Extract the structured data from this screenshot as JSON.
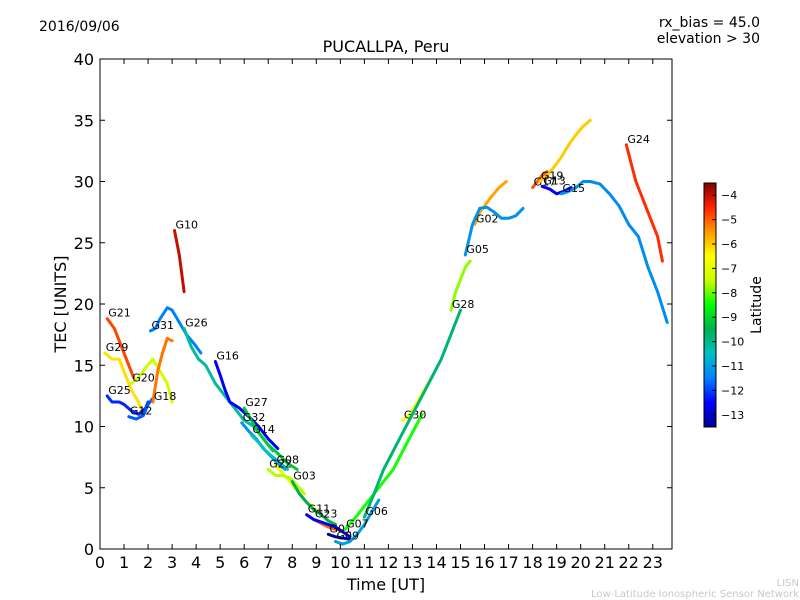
{
  "header": {
    "date": "2016/09/06",
    "params": [
      "rx_bias = 45.0",
      "elevation > 30"
    ]
  },
  "footer": {
    "acronym": "LISN",
    "network": "Low-Latitude Ionospheric Sensor Network"
  },
  "chart_data": {
    "type": "line",
    "title": "PUCALLPA, Peru",
    "xlabel": "Time [UT]",
    "ylabel": "TEC [UNITS]",
    "xlim": [
      0,
      23.8
    ],
    "ylim": [
      0,
      40
    ],
    "xticks": [
      0,
      1,
      2,
      3,
      4,
      5,
      6,
      7,
      8,
      9,
      10,
      11,
      12,
      13,
      14,
      15,
      16,
      17,
      18,
      19,
      20,
      21,
      22,
      23
    ],
    "yticks": [
      0,
      5,
      10,
      15,
      20,
      25,
      30,
      35,
      40
    ],
    "grid": false,
    "colorbar": {
      "label": "Latitude",
      "range": [
        -13.5,
        -3.5
      ],
      "ticks": [
        -4,
        -5,
        -6,
        -7,
        -8,
        -9,
        -10,
        -11,
        -12,
        -13
      ],
      "colormap": [
        "#00008f",
        "#0000ff",
        "#0080ff",
        "#00c0c0",
        "#00b050",
        "#00ff00",
        "#c8ff00",
        "#ffff00",
        "#ff9900",
        "#ff2200",
        "#800000"
      ]
    },
    "series": [
      {
        "name": "G21",
        "lat": -4.8,
        "x": [
          0.3,
          0.6,
          0.9,
          1.2,
          1.4
        ],
        "y": [
          18.8,
          18.0,
          16.5,
          15.0,
          14.0
        ]
      },
      {
        "name": "G29",
        "lat": -6.2,
        "x": [
          0.2,
          0.5,
          0.8,
          1.0,
          1.3,
          1.6,
          1.8
        ],
        "y": [
          16.0,
          15.5,
          15.5,
          14.5,
          13.0,
          12.0,
          11.0
        ]
      },
      {
        "name": "G25",
        "lat": -12.2,
        "x": [
          0.3,
          0.5,
          0.8,
          1.0,
          1.3,
          1.6,
          1.9,
          2.0
        ],
        "y": [
          12.5,
          12.0,
          12.0,
          11.8,
          11.3,
          11.0,
          11.5,
          12.0
        ]
      },
      {
        "name": "G12",
        "lat": -11.8,
        "x": [
          1.2,
          1.5,
          1.8,
          2.0,
          2.2
        ],
        "y": [
          10.8,
          10.6,
          10.9,
          11.8,
          12.3
        ]
      },
      {
        "name": "G20",
        "lat": -7.4,
        "x": [
          1.3,
          1.6,
          1.9,
          2.2,
          2.5,
          2.8,
          3.0
        ],
        "y": [
          13.5,
          14.0,
          14.8,
          15.5,
          14.5,
          13.5,
          12.0
        ]
      },
      {
        "name": "G18",
        "lat": -5.2,
        "x": [
          2.2,
          2.4,
          2.6,
          2.8,
          3.0
        ],
        "y": [
          12.0,
          14.5,
          16.0,
          17.2,
          17.0
        ]
      },
      {
        "name": "G31",
        "lat": -11.5,
        "x": [
          2.1,
          2.3,
          2.5,
          2.8,
          3.0,
          3.3,
          3.6,
          3.9,
          4.2
        ],
        "y": [
          17.8,
          18.0,
          18.8,
          19.7,
          19.5,
          18.5,
          17.5,
          16.8,
          16.0
        ]
      },
      {
        "name": "G10",
        "lat": -4.0,
        "x": [
          3.1,
          3.2,
          3.3,
          3.4,
          3.5
        ],
        "y": [
          26.0,
          25.0,
          24.0,
          22.5,
          21.0
        ]
      },
      {
        "name": "G26",
        "lat": -10.2,
        "x": [
          3.5,
          3.8,
          4.1,
          4.4,
          4.8,
          5.2,
          5.6,
          6.0,
          6.4,
          6.8,
          7.2
        ],
        "y": [
          18.0,
          16.5,
          15.5,
          15.0,
          13.5,
          12.5,
          11.5,
          10.5,
          10.0,
          9.0,
          8.0
        ]
      },
      {
        "name": "G16",
        "lat": -12.5,
        "x": [
          4.8,
          5.0,
          5.2,
          5.4,
          5.8,
          6.2,
          6.6,
          7.0,
          7.4
        ],
        "y": [
          15.3,
          14.2,
          13.0,
          12.0,
          11.5,
          10.8,
          10.0,
          9.0,
          8.2
        ]
      },
      {
        "name": "G27",
        "lat": -9.2,
        "x": [
          6.0,
          6.3,
          6.6,
          7.0,
          7.4,
          7.8,
          8.2
        ],
        "y": [
          11.5,
          10.5,
          9.5,
          8.5,
          7.8,
          7.0,
          6.5
        ]
      },
      {
        "name": "G32",
        "lat": -11.2,
        "x": [
          5.9,
          6.2,
          6.5,
          6.8,
          7.1,
          7.4,
          7.7
        ],
        "y": [
          10.3,
          9.6,
          9.0,
          8.2,
          7.6,
          7.0,
          6.5
        ]
      },
      {
        "name": "G14",
        "lat": -10.5,
        "x": [
          6.3,
          6.6,
          6.9,
          7.2,
          7.5,
          7.8
        ],
        "y": [
          9.3,
          8.7,
          8.0,
          7.5,
          7.0,
          6.5
        ]
      },
      {
        "name": "G08",
        "lat": -6.8,
        "x": [
          7.3,
          7.6,
          7.9,
          8.2,
          8.5,
          8.8,
          9.1
        ],
        "y": [
          6.8,
          6.2,
          5.5,
          4.8,
          4.0,
          3.5,
          3.0
        ]
      },
      {
        "name": "G22",
        "lat": -7.6,
        "x": [
          7.0,
          7.3,
          7.6,
          7.9,
          8.2,
          8.5
        ],
        "y": [
          6.5,
          6.0,
          6.0,
          5.8,
          5.2,
          4.5
        ]
      },
      {
        "name": "G03",
        "lat": -9.5,
        "x": [
          8.0,
          8.3,
          8.6,
          8.9,
          9.2,
          9.5,
          9.8
        ],
        "y": [
          5.5,
          4.5,
          3.8,
          3.2,
          2.8,
          2.3,
          2.0
        ]
      },
      {
        "name": "G23",
        "lat": -5.0,
        "x": [
          8.9,
          9.2,
          9.5,
          9.8,
          10.1
        ],
        "y": [
          2.4,
          2.1,
          1.8,
          1.6,
          1.5
        ]
      },
      {
        "name": "G11",
        "lat": -12.6,
        "x": [
          8.6,
          8.9,
          9.2,
          9.5,
          9.8,
          10.1,
          10.4
        ],
        "y": [
          2.8,
          2.4,
          2.2,
          2.0,
          1.8,
          1.4,
          1.0
        ]
      },
      {
        "name": "G01",
        "lat": -13.2,
        "x": [
          9.5,
          9.8,
          10.1,
          10.4
        ],
        "y": [
          1.2,
          1.0,
          0.9,
          0.8
        ]
      },
      {
        "name": "G09",
        "lat": -11.0,
        "x": [
          9.8,
          10.1,
          10.4,
          10.7,
          11.0,
          11.3,
          11.6
        ],
        "y": [
          0.6,
          0.4,
          0.6,
          1.2,
          2.0,
          3.0,
          4.0
        ]
      },
      {
        "name": "G07",
        "lat": -8.4,
        "x": [
          10.2,
          10.6,
          11.0,
          11.4,
          11.8,
          12.2,
          12.6,
          13.0,
          13.4
        ],
        "y": [
          1.6,
          2.5,
          3.5,
          4.5,
          5.5,
          6.5,
          8.0,
          9.5,
          11.0
        ]
      },
      {
        "name": "G30",
        "lat": -6.6,
        "x": [
          12.6,
          12.9,
          13.2,
          13.5,
          13.8
        ],
        "y": [
          10.5,
          11.0,
          12.0,
          13.0,
          14.0
        ]
      },
      {
        "name": "G06",
        "lat": -9.8,
        "x": [
          11.0,
          11.4,
          11.8,
          12.2,
          12.6,
          13.0,
          13.4,
          13.8,
          14.2,
          14.6,
          15.0
        ],
        "y": [
          2.6,
          4.5,
          6.5,
          8.0,
          9.5,
          11.0,
          12.5,
          14.0,
          15.5,
          17.5,
          19.5
        ]
      },
      {
        "name": "G28",
        "lat": -7.8,
        "x": [
          14.6,
          14.8,
          15.0,
          15.2,
          15.4
        ],
        "y": [
          19.5,
          21.0,
          22.0,
          23.0,
          23.5
        ]
      },
      {
        "name": "G02",
        "lat": -5.6,
        "x": [
          15.6,
          15.8,
          16.0,
          16.3,
          16.6,
          16.9
        ],
        "y": [
          26.5,
          27.5,
          28.0,
          28.8,
          29.5,
          30.0
        ]
      },
      {
        "name": "G05",
        "lat": -11.2,
        "x": [
          15.2,
          15.5,
          15.8,
          16.1,
          16.4,
          16.7,
          17.0,
          17.3,
          17.6
        ],
        "y": [
          24.0,
          26.5,
          27.8,
          27.9,
          27.5,
          27.0,
          27.0,
          27.2,
          27.8
        ]
      },
      {
        "name": "G17",
        "lat": -4.9,
        "x": [
          18.0,
          18.2,
          18.4,
          18.6
        ],
        "y": [
          29.5,
          30.0,
          30.5,
          30.8
        ]
      },
      {
        "name": "G19",
        "lat": -6.0,
        "x": [
          18.3,
          18.6,
          18.9,
          19.2,
          19.5,
          19.8,
          20.1,
          20.4
        ],
        "y": [
          30.0,
          30.5,
          31.2,
          32.0,
          33.0,
          33.8,
          34.5,
          35.0
        ]
      },
      {
        "name": "G13",
        "lat": -12.5,
        "x": [
          18.4,
          18.7,
          19.0,
          19.3,
          19.6
        ],
        "y": [
          29.6,
          29.4,
          29.0,
          29.2,
          29.5
        ]
      },
      {
        "name": "G15",
        "lat": -11.3,
        "x": [
          19.2,
          19.5,
          19.8,
          20.1,
          20.4,
          20.8,
          21.2,
          21.6,
          22.0,
          22.4,
          22.8,
          23.2,
          23.6
        ],
        "y": [
          29.0,
          29.2,
          29.5,
          30.0,
          30.0,
          29.8,
          29.0,
          28.0,
          26.5,
          25.5,
          23.0,
          21.0,
          18.5
        ]
      },
      {
        "name": "G24",
        "lat": -4.6,
        "x": [
          21.9,
          22.1,
          22.3,
          22.6,
          22.9,
          23.2,
          23.4
        ],
        "y": [
          33.0,
          31.5,
          30.0,
          28.5,
          27.0,
          25.5,
          23.5
        ]
      }
    ]
  }
}
